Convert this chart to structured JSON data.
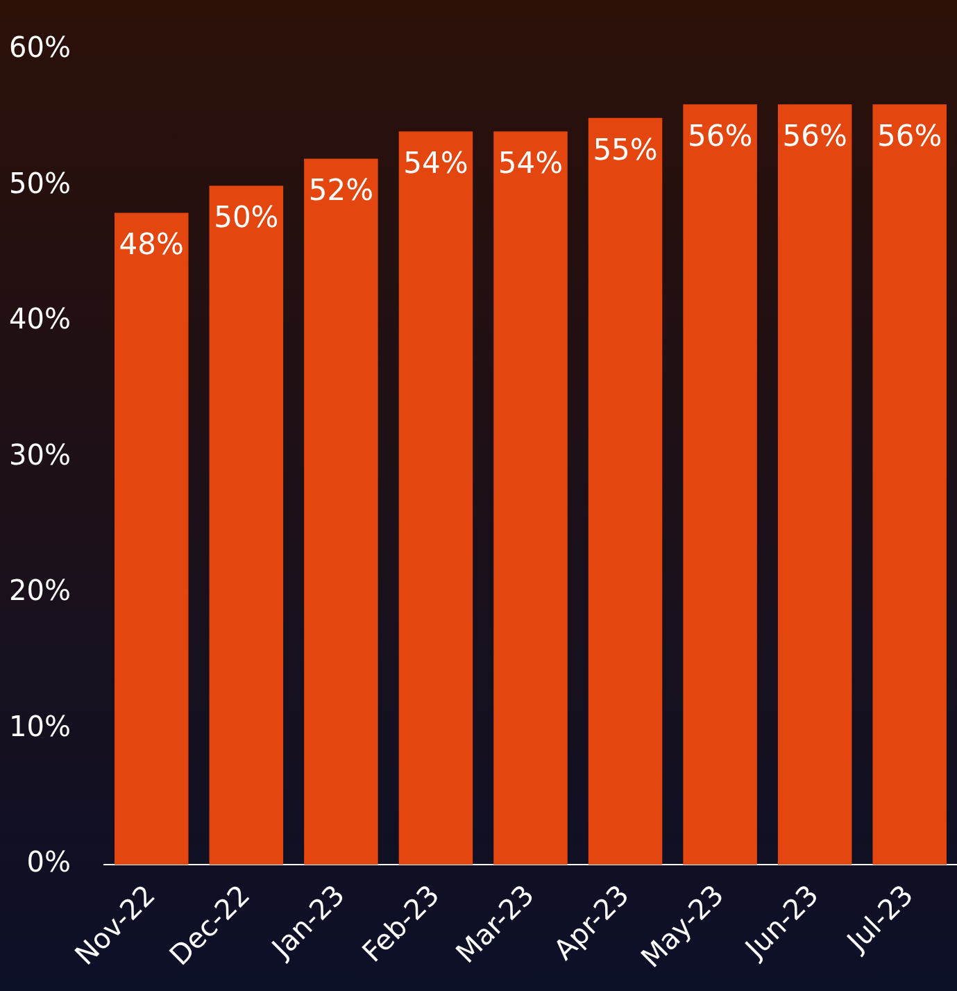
{
  "chart_data": {
    "type": "bar",
    "categories": [
      "Nov-22",
      "Dec-22",
      "Jan-23",
      "Feb-23",
      "Mar-23",
      "Apr-23",
      "May-23",
      "Jun-23",
      "Jul-23"
    ],
    "values": [
      48,
      50,
      52,
      54,
      54,
      55,
      56,
      56,
      56
    ],
    "color": "#e4460f",
    "ylim": [
      0,
      60
    ],
    "yticks": [
      {
        "value": 0,
        "label": "0%"
      },
      {
        "value": 10,
        "label": "10%"
      },
      {
        "value": 20,
        "label": "20%"
      },
      {
        "value": 30,
        "label": "30%"
      },
      {
        "value": 40,
        "label": "40%"
      },
      {
        "value": 50,
        "label": "50%"
      },
      {
        "value": 60,
        "label": "60%"
      }
    ],
    "value_labels": [
      "48%",
      "50%",
      "52%",
      "54%",
      "54%",
      "55%",
      "56%",
      "56%",
      "56%"
    ],
    "grid": false,
    "legend": false
  }
}
